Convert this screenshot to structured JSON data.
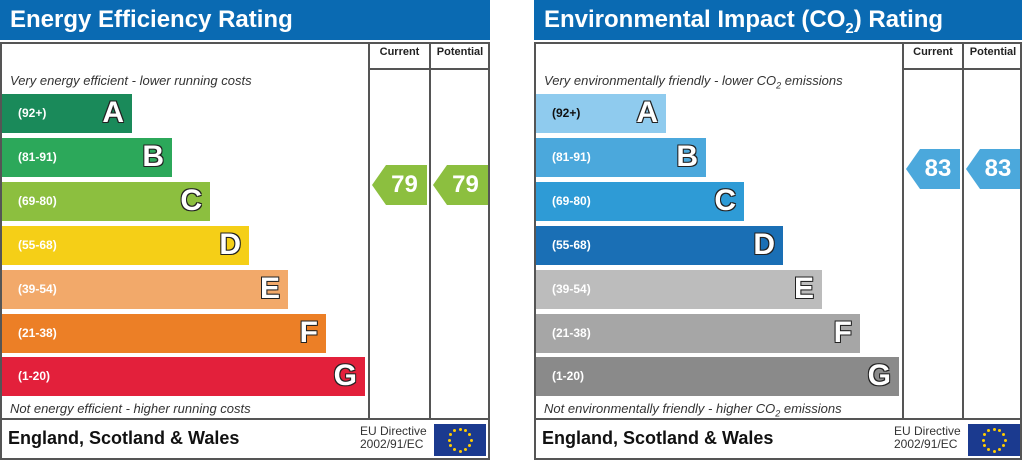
{
  "energy": {
    "title": "Energy Efficiency Rating",
    "col_current": "Current",
    "col_potential": "Potential",
    "top_note": "Very energy efficient - lower running costs",
    "bottom_note": "Not energy efficient - higher running costs",
    "bands": [
      {
        "range": "(92+)",
        "letter": "A",
        "color": "#1a8a5a"
      },
      {
        "range": "(81-91)",
        "letter": "B",
        "color": "#2ca85a"
      },
      {
        "range": "(69-80)",
        "letter": "C",
        "color": "#8cbf3f"
      },
      {
        "range": "(55-68)",
        "letter": "D",
        "color": "#f5cf17"
      },
      {
        "range": "(39-54)",
        "letter": "E",
        "color": "#f2a96a"
      },
      {
        "range": "(21-38)",
        "letter": "F",
        "color": "#ec7f26"
      },
      {
        "range": "(1-20)",
        "letter": "G",
        "color": "#e3203b"
      }
    ],
    "current": "79",
    "potential": "79",
    "arrow_color": "#8cbf3f",
    "footer": "England, Scotland & Wales",
    "eu_line1": "EU Directive",
    "eu_line2": "2002/91/EC"
  },
  "co2": {
    "title_pre": "Environmental Impact (CO",
    "title_sub": "2",
    "title_post": ") Rating",
    "col_current": "Current",
    "col_potential": "Potential",
    "top_note_pre": "Very environmentally friendly - lower CO",
    "top_note_sub": "2",
    "top_note_post": " emissions",
    "bottom_note_pre": "Not environmentally friendly - higher CO",
    "bottom_note_sub": "2",
    "bottom_note_post": " emissions",
    "bands": [
      {
        "range": "(92+)",
        "letter": "A",
        "color": "#8fcbee"
      },
      {
        "range": "(81-91)",
        "letter": "B",
        "color": "#4ba8dc"
      },
      {
        "range": "(69-80)",
        "letter": "C",
        "color": "#2e9bd6"
      },
      {
        "range": "(55-68)",
        "letter": "D",
        "color": "#1a6fb5"
      },
      {
        "range": "(39-54)",
        "letter": "E",
        "color": "#bcbcbc"
      },
      {
        "range": "(21-38)",
        "letter": "F",
        "color": "#a6a6a6"
      },
      {
        "range": "(1-20)",
        "letter": "G",
        "color": "#8a8a8a"
      }
    ],
    "current": "83",
    "potential": "83",
    "arrow_color": "#4ba8dc",
    "footer": "England, Scotland & Wales",
    "eu_line1": "EU Directive",
    "eu_line2": "2002/91/EC"
  }
}
